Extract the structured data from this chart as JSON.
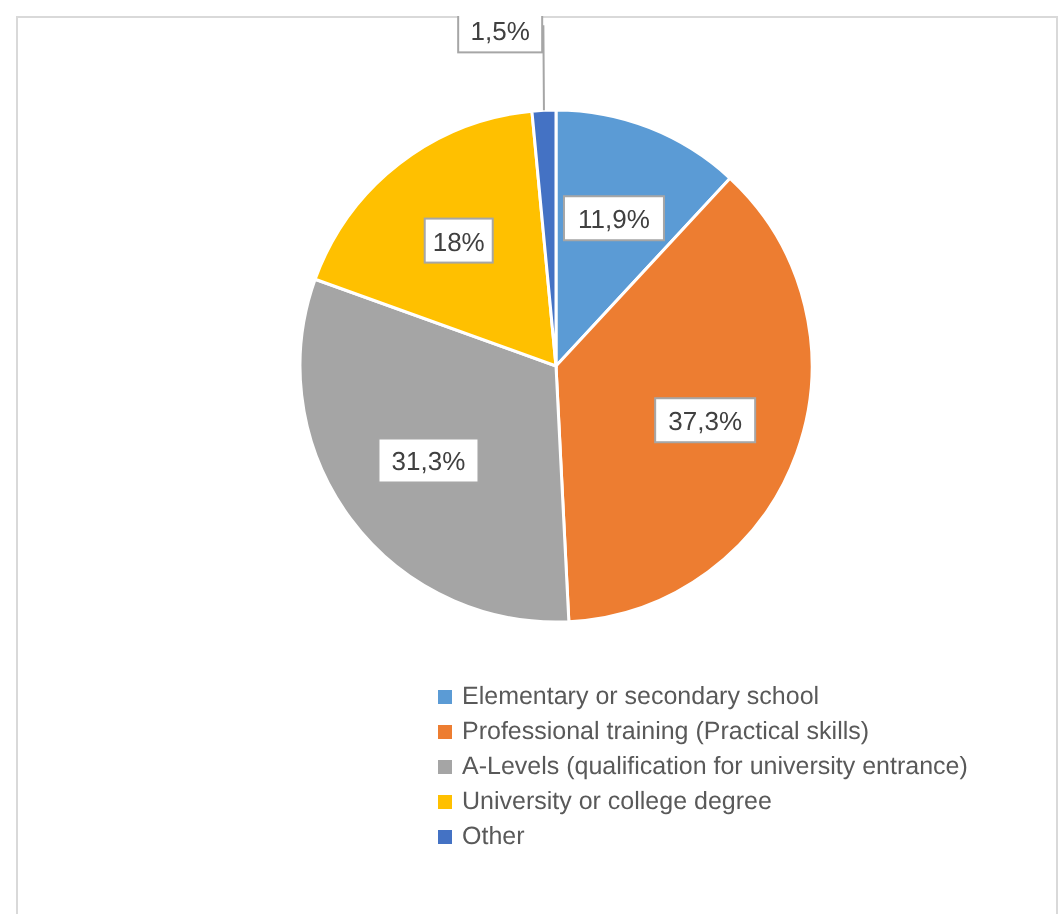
{
  "chart_data": {
    "type": "pie",
    "categories": [
      "Elementary or secondary school",
      "Professional training (Practical skills)",
      "A-Levels (qualification for university entrance)",
      "University or college degree",
      "Other"
    ],
    "values": [
      11.9,
      37.3,
      31.3,
      18,
      1.5
    ],
    "colors": [
      "#5b9bd5",
      "#ed7d31",
      "#a5a5a5",
      "#ffc000",
      "#4472c4"
    ],
    "value_labels": [
      "11,9%",
      "37,3%",
      "31,3%",
      "18%",
      "1,5%"
    ],
    "legend": "bottom"
  }
}
